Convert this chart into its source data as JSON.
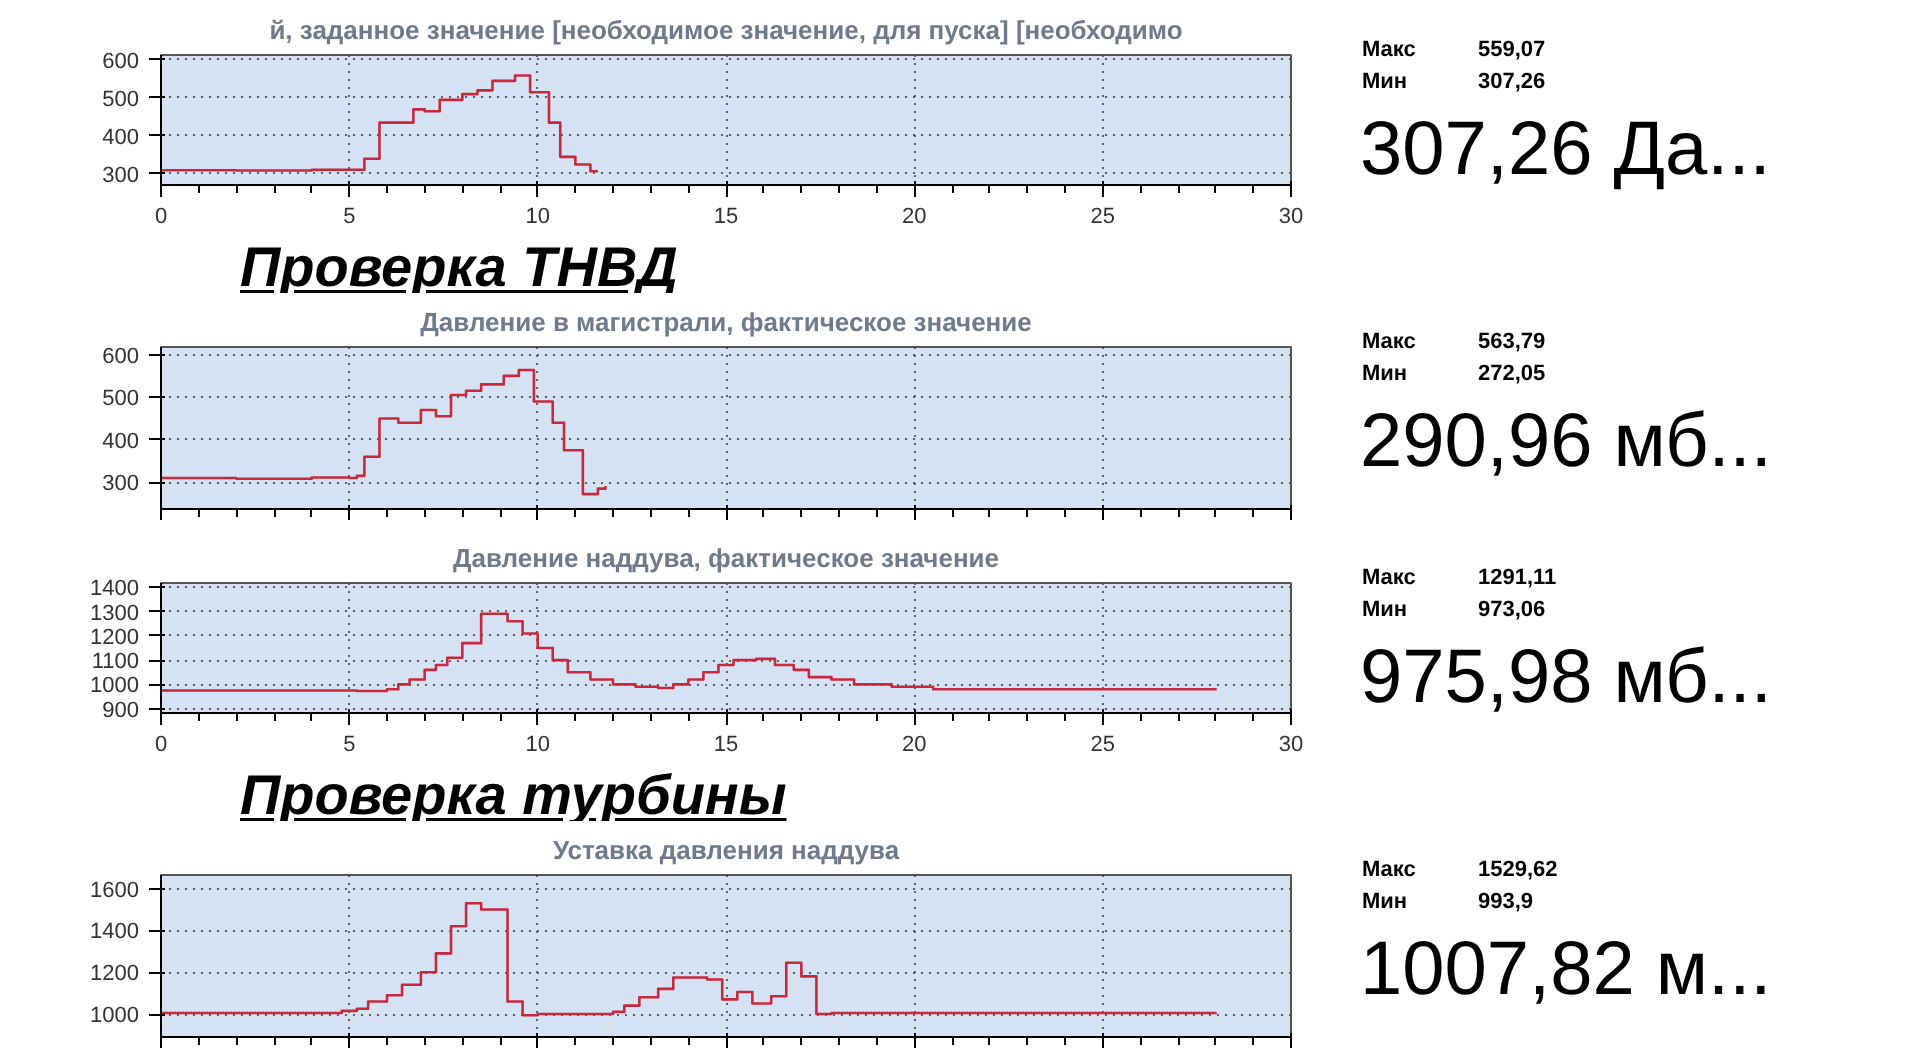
{
  "chart_data": [
    {
      "type": "step",
      "title": "й, заданное значение [необходимое значение, для пуска] [необходимо",
      "x": [
        0,
        2,
        4,
        5.4,
        5.8,
        6.7,
        7.0,
        7.4,
        8.0,
        8.4,
        8.8,
        9.4,
        9.8,
        10.3,
        10.6,
        11.0,
        11.4,
        11.6
      ],
      "values": [
        310,
        309,
        311,
        340,
        435,
        470,
        465,
        495,
        510,
        520,
        545,
        559,
        515,
        435,
        345,
        325,
        307,
        307
      ],
      "color": "#c8283c",
      "xlim": [
        0,
        30
      ],
      "xticks": [
        0,
        5,
        10,
        15,
        20,
        25,
        30
      ],
      "ylim": [
        271,
        613
      ],
      "yticks": [
        300,
        400,
        500,
        600
      ],
      "grid": true,
      "annotations": [
        "Макс",
        "559,07",
        "Мин",
        "307,26",
        "307,26 Да...",
        "Проверка ТНВД"
      ]
    },
    {
      "type": "step",
      "title": "Давление в магистрали, фактическое значение",
      "x": [
        0,
        2,
        4,
        5.0,
        5.2,
        5.4,
        5.8,
        6.3,
        6.9,
        7.3,
        7.7,
        8.1,
        8.5,
        9.1,
        9.5,
        9.9,
        10.4,
        10.7,
        11.2,
        11.6,
        11.8
      ],
      "values": [
        310,
        308,
        311,
        310,
        315,
        360,
        450,
        440,
        470,
        455,
        505,
        515,
        530,
        550,
        564,
        490,
        440,
        375,
        272,
        285,
        291
      ],
      "color": "#c8283c",
      "xlim": [
        0,
        30
      ],
      "xticks": [
        0,
        5,
        10,
        15,
        20,
        25,
        30
      ],
      "ylim": [
        237,
        618
      ],
      "yticks": [
        300,
        400,
        500,
        600
      ],
      "grid": true,
      "tick_labels": "y",
      "annotations": [
        "Макс",
        "563,79",
        "Мин",
        "272,05",
        "290,96 мб..."
      ]
    },
    {
      "type": "step",
      "title": "Давление наддува, фактическое значение",
      "x": [
        0,
        5.0,
        5.2,
        6.0,
        6.3,
        6.6,
        7.0,
        7.3,
        7.6,
        8.0,
        8.5,
        9.2,
        9.6,
        10.0,
        10.4,
        10.8,
        11.4,
        12.0,
        12.6,
        13.2,
        13.6,
        14.0,
        14.4,
        14.8,
        15.2,
        15.8,
        16.3,
        16.8,
        17.2,
        17.8,
        18.4,
        19.4,
        20.5,
        28.0
      ],
      "values": [
        975,
        975,
        973,
        980,
        1000,
        1020,
        1060,
        1080,
        1110,
        1170,
        1291,
        1260,
        1210,
        1150,
        1100,
        1050,
        1020,
        1000,
        990,
        985,
        1000,
        1020,
        1050,
        1080,
        1100,
        1105,
        1080,
        1060,
        1030,
        1020,
        1000,
        990,
        980,
        976
      ],
      "color": "#c8283c",
      "xlim": [
        0,
        30
      ],
      "xticks": [
        0,
        5,
        10,
        15,
        20,
        25,
        30
      ],
      "ylim": [
        882,
        1418
      ],
      "yticks": [
        900,
        1000,
        1100,
        1200,
        1300,
        1400
      ],
      "grid": true,
      "annotations": [
        "Макс",
        "1291,11",
        "Мин",
        "973,06",
        "975,98 мб...",
        "Проверка турбины"
      ]
    },
    {
      "type": "step",
      "title": "Уставка давления наддува",
      "x": [
        0,
        4.0,
        4.8,
        5.2,
        5.5,
        6.0,
        6.4,
        6.9,
        7.3,
        7.7,
        8.1,
        8.5,
        9.2,
        9.6,
        10.0,
        12.0,
        12.3,
        12.7,
        13.2,
        13.6,
        14.5,
        14.9,
        15.3,
        15.7,
        16.2,
        16.6,
        17.0,
        17.4,
        17.8,
        28.0
      ],
      "values": [
        1005,
        1005,
        1015,
        1025,
        1060,
        1090,
        1140,
        1200,
        1290,
        1420,
        1530,
        1500,
        1060,
        994,
        1000,
        1010,
        1040,
        1080,
        1120,
        1175,
        1165,
        1070,
        1105,
        1050,
        1085,
        1245,
        1180,
        1000,
        1005,
        1008
      ],
      "color": "#c8283c",
      "xlim": [
        0,
        30
      ],
      "xticks": [
        0,
        5,
        10,
        15,
        20,
        25,
        30
      ],
      "ylim": [
        890,
        1665
      ],
      "yticks": [
        1000,
        1200,
        1400,
        1600
      ],
      "grid": true,
      "tick_labels": "y",
      "annotations": [
        "Макс",
        "1529,62",
        "Мин",
        "993,9",
        "1007,82 м..."
      ]
    }
  ]
}
